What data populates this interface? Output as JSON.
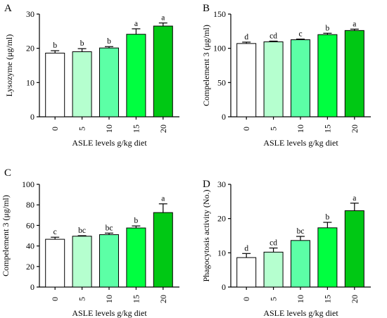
{
  "figure": {
    "bar_fills": [
      "#ffffff",
      "#b5ffcf",
      "#5cffa6",
      "#00ff40",
      "#00c814"
    ],
    "bar_stroke": "#000000"
  },
  "chart_data": [
    {
      "panel": "A",
      "type": "bar",
      "title": "",
      "xlabel": "ASLE levels g/kg diet",
      "ylabel": "Lysozyme (μg/ml)",
      "categories": [
        "0",
        "5",
        "10",
        "15",
        "20"
      ],
      "values": [
        18.6,
        19.0,
        20.1,
        24.1,
        26.5
      ],
      "errors": [
        0.7,
        0.9,
        0.4,
        1.6,
        0.9
      ],
      "significance": [
        "b",
        "b",
        "b",
        "a",
        "a"
      ],
      "ylim": [
        0,
        30
      ],
      "yticks": [
        0,
        10,
        20,
        30
      ],
      "grid": false
    },
    {
      "panel": "B",
      "type": "bar",
      "title": "",
      "xlabel": "ASLE levels g/kg diet",
      "ylabel": "Compelement 3 (μg/ml)",
      "categories": [
        "0",
        "5",
        "10",
        "15",
        "20"
      ],
      "values": [
        107.0,
        109.5,
        112.5,
        120.0,
        126.0
      ],
      "errors": [
        2.0,
        1.0,
        1.0,
        2.0,
        2.0
      ],
      "significance": [
        "d",
        "cd",
        "c",
        "b",
        "a"
      ],
      "ylim": [
        0,
        150
      ],
      "yticks": [
        0,
        50,
        100,
        150
      ],
      "grid": false
    },
    {
      "panel": "C",
      "type": "bar",
      "title": "",
      "xlabel": "ASLE levels g/kg diet",
      "ylabel": "Compelement 3 (μg/ml)",
      "categories": [
        "0",
        "5",
        "10",
        "15",
        "20"
      ],
      "values": [
        46.5,
        49.5,
        51.0,
        57.5,
        72.5
      ],
      "errors": [
        2.0,
        0.5,
        1.5,
        2.0,
        8.5
      ],
      "significance": [
        "c",
        "bc",
        "bc",
        "b",
        "a"
      ],
      "ylim": [
        0,
        100
      ],
      "yticks": [
        0,
        20,
        40,
        60,
        80,
        100
      ],
      "grid": false
    },
    {
      "panel": "D",
      "type": "bar",
      "title": "",
      "xlabel": "ASLE levels g/kg diet",
      "ylabel": "Phagocytosis activity (No.)",
      "categories": [
        "0",
        "5",
        "10",
        "15",
        "20"
      ],
      "values": [
        8.6,
        10.2,
        13.6,
        17.3,
        22.3
      ],
      "errors": [
        1.2,
        1.2,
        1.2,
        1.6,
        2.2
      ],
      "significance": [
        "d",
        "cd",
        "bc",
        "b",
        "a"
      ],
      "ylim": [
        0,
        30
      ],
      "yticks": [
        0,
        10,
        20,
        30
      ],
      "grid": false
    }
  ]
}
